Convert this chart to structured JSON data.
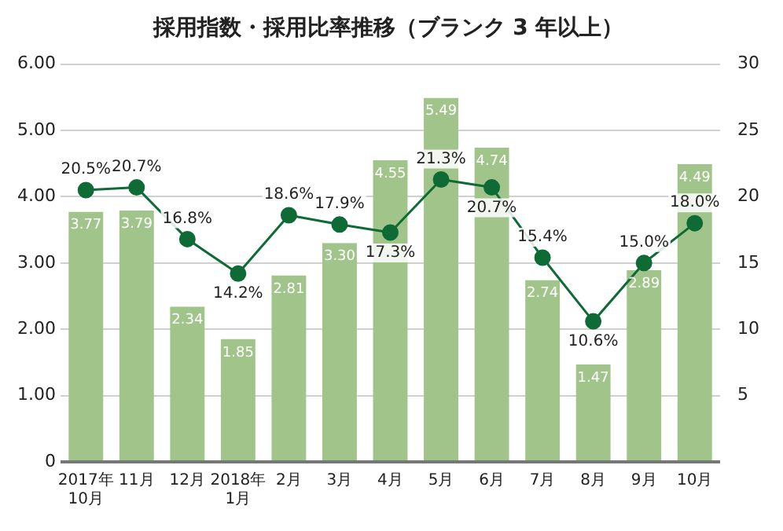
{
  "chart_data": {
    "type": "bar",
    "title": "採用指数・採用比率推移（ブランク 3 年以上）",
    "categories": [
      "2017年\n10月",
      "11月",
      "12月",
      "2018年\n1月",
      "2月",
      "3月",
      "4月",
      "5月",
      "6月",
      "7月",
      "8月",
      "9月",
      "10月"
    ],
    "series": [
      {
        "color": "#a0c48a",
        "values": [
          3.77,
          3.79,
          2.34,
          1.85,
          2.81,
          3.3,
          4.55,
          5.49,
          4.74,
          2.74,
          1.47,
          2.89,
          4.49
        ],
        "value_labels": [
          "3.77",
          "3.79",
          "2.34",
          "1.85",
          "2.81",
          "3.30",
          "4.55",
          "5.49",
          "4.74",
          "2.74",
          "1.47",
          "2.89",
          "4.49"
        ]
      },
      {
        "type": "line",
        "axis": "y2",
        "color": "#0e6b35",
        "values": [
          20.5,
          20.7,
          16.8,
          14.2,
          18.6,
          17.9,
          17.3,
          21.3,
          20.7,
          15.4,
          10.6,
          15.0,
          18.0
        ],
        "value_labels": [
          "20.5%",
          "20.7%",
          "16.8%",
          "14.2%",
          "18.6%",
          "17.9%",
          "17.3%",
          "21.3%",
          "20.7%",
          "15.4%",
          "10.6%",
          "15.0%",
          "18.0%"
        ]
      }
    ],
    "ylim": [
      0,
      6
    ],
    "yticks": [
      {
        "value": 0,
        "label": "0"
      },
      {
        "value": 1,
        "label": "1.00"
      },
      {
        "value": 2,
        "label": "2.00"
      },
      {
        "value": 3,
        "label": "3.00"
      },
      {
        "value": 4,
        "label": "4.00"
      },
      {
        "value": 5,
        "label": "5.00"
      },
      {
        "value": 6,
        "label": "6.00"
      }
    ],
    "y2lim": [
      0,
      30
    ],
    "y2ticks": [
      5,
      10,
      15,
      20,
      25,
      30
    ],
    "grid": "y",
    "legend": false,
    "marker": "circle",
    "line_style": "solid"
  }
}
